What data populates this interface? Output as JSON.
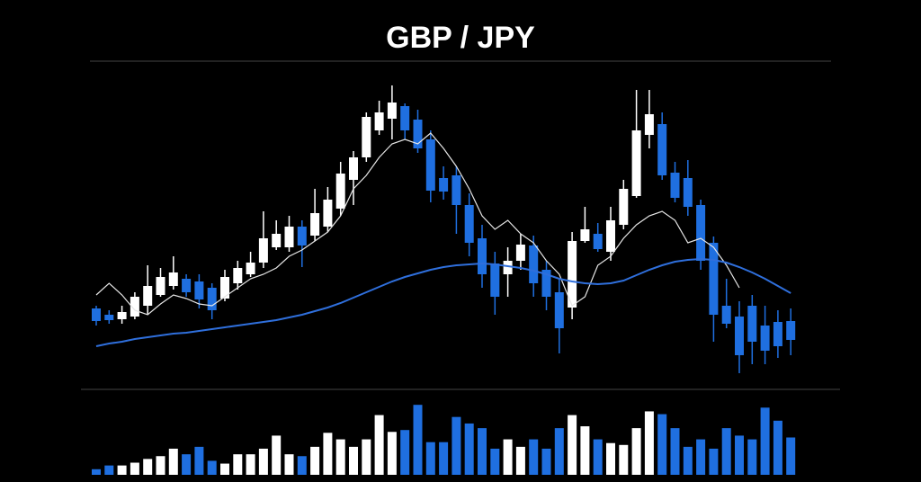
{
  "chart_data": {
    "type": "candlestick",
    "title": "GBP / JPY",
    "up_color": "#ffffff",
    "down_color": "#1f6fe0",
    "ylim": [
      0,
      340
    ],
    "open": [
      77,
      70,
      65,
      68,
      80,
      92,
      102,
      110,
      107,
      100,
      88,
      105,
      115,
      128,
      145,
      145,
      168,
      158,
      168,
      188,
      220,
      245,
      275,
      288,
      302,
      287,
      265,
      222,
      225,
      192,
      155,
      127,
      115,
      130,
      147,
      120,
      95,
      78,
      152,
      160,
      140,
      170,
      202,
      270,
      282,
      228,
      222,
      192,
      150,
      80,
      68,
      80,
      58,
      62,
      63
    ],
    "close": [
      63,
      64,
      73,
      90,
      102,
      112,
      117,
      95,
      87,
      75,
      112,
      122,
      128,
      155,
      160,
      168,
      147,
      183,
      198,
      227,
      245,
      290,
      295,
      306,
      275,
      255,
      208,
      207,
      192,
      150,
      115,
      90,
      130,
      148,
      105,
      90,
      55,
      152,
      165,
      143,
      175,
      210,
      275,
      293,
      225,
      200,
      190,
      130,
      70,
      60,
      25,
      40,
      30,
      35,
      42
    ],
    "high": [
      80,
      75,
      80,
      95,
      125,
      122,
      135,
      115,
      115,
      105,
      120,
      130,
      140,
      185,
      175,
      180,
      175,
      210,
      212,
      240,
      252,
      295,
      308,
      325,
      305,
      298,
      275,
      235,
      235,
      205,
      170,
      140,
      145,
      160,
      158,
      130,
      110,
      162,
      190,
      172,
      190,
      220,
      320,
      320,
      295,
      240,
      242,
      198,
      157,
      110,
      85,
      92,
      80,
      75,
      77
    ],
    "low": [
      58,
      60,
      60,
      65,
      70,
      90,
      98,
      90,
      77,
      65,
      85,
      98,
      112,
      122,
      142,
      140,
      123,
      152,
      162,
      180,
      192,
      240,
      270,
      265,
      265,
      250,
      195,
      198,
      160,
      135,
      100,
      70,
      90,
      120,
      90,
      75,
      27,
      65,
      150,
      140,
      130,
      165,
      200,
      255,
      220,
      195,
      180,
      120,
      40,
      55,
      5,
      15,
      15,
      22,
      25
    ],
    "series": [
      {
        "name": "short-ma",
        "color": "#e6e6e6",
        "values": [
          92,
          105,
          92,
          75,
          70,
          82,
          92,
          88,
          82,
          80,
          90,
          100,
          110,
          115,
          122,
          135,
          142,
          152,
          162,
          180,
          210,
          225,
          245,
          260,
          265,
          260,
          272,
          255,
          235,
          210,
          180,
          165,
          175,
          160,
          150,
          130,
          115,
          80,
          90,
          125,
          135,
          155,
          170,
          180,
          185,
          175,
          150,
          155,
          145,
          125,
          100,
          null,
          null,
          null,
          null
        ]
      },
      {
        "name": "long-ma",
        "color": "#2f6fdc",
        "values": [
          35,
          38,
          40,
          43,
          45,
          47,
          49,
          50,
          52,
          54,
          56,
          58,
          60,
          62,
          64,
          67,
          70,
          74,
          78,
          83,
          89,
          95,
          101,
          107,
          112,
          116,
          120,
          123,
          125,
          126,
          127,
          126,
          124,
          122,
          119,
          115,
          110,
          107,
          105,
          104,
          105,
          108,
          114,
          120,
          125,
          129,
          131,
          132,
          131,
          128,
          123,
          117,
          110,
          102,
          94
        ]
      }
    ],
    "volume": [
      6,
      10,
      10,
      13,
      17,
      20,
      28,
      22,
      30,
      15,
      12,
      22,
      22,
      28,
      42,
      22,
      20,
      30,
      45,
      38,
      30,
      38,
      64,
      46,
      48,
      75,
      35,
      35,
      62,
      55,
      50,
      28,
      38,
      30,
      38,
      28,
      50,
      64,
      52,
      38,
      34,
      32,
      50,
      68,
      65,
      50,
      30,
      38,
      28,
      50,
      42,
      38,
      72,
      58,
      40
    ],
    "vlim": [
      0,
      80
    ]
  }
}
